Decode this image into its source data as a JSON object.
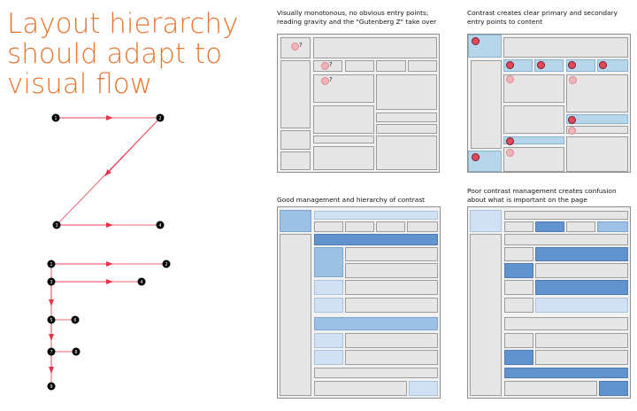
{
  "title": {
    "line1": "Layout hierarchy",
    "line2": "should adapt to",
    "line3": "visual flow"
  },
  "colors": {
    "title": "#e8752f",
    "arrow": "#e8354a",
    "node": "#000000",
    "highlight_light": "#b7d6ec",
    "highlight_dark": "#6194cf"
  },
  "z_pattern": {
    "nodes": [
      "1",
      "2",
      "3",
      "4"
    ]
  },
  "f_pattern": {
    "nodes": [
      "1",
      "2",
      "3",
      "4",
      "5",
      "6",
      "7",
      "8",
      "9"
    ]
  },
  "panels": [
    {
      "caption_line1": "Visually monotonous, no obvious entry points;",
      "caption_line2": "reading gravity and the \"Gutenberg Z\" take over",
      "markers": [
        "?",
        "?",
        "?"
      ]
    },
    {
      "caption_line1": "Contrast creates clear primary and secondary",
      "caption_line2": "entry points to content"
    },
    {
      "caption_line1": "Good management and hierarchy of contrast",
      "caption_line2": ""
    },
    {
      "caption_line1": "Poor contrast management creates confusion",
      "caption_line2": "about what is important on the page"
    }
  ]
}
